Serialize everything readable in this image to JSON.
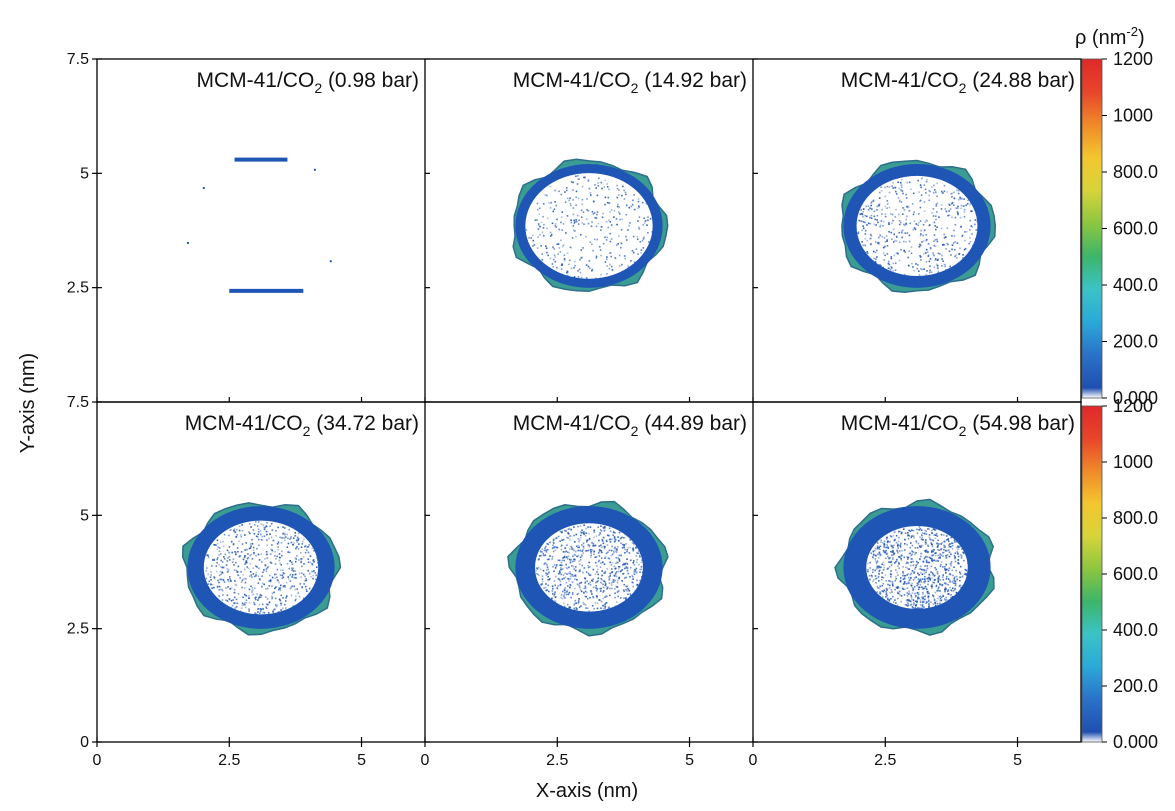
{
  "chart_data": {
    "type": "heatmap",
    "xlabel": "X-axis (nm)",
    "ylabel": "Y-axis (nm)",
    "x_ticks": [
      "0",
      "2.5",
      "5"
    ],
    "y_ticks_top": [
      "7.5",
      "5",
      "2.5"
    ],
    "y_ticks_bottom": [
      "7.5",
      "5",
      "2.5",
      "0"
    ],
    "xlim": [
      0,
      6.2
    ],
    "ylim": [
      0,
      7.5
    ],
    "colorbar": {
      "label": "ρ (nm",
      "label_sup": "-2",
      "label_end": ")",
      "ticks": [
        "1200",
        "1000",
        "800.0",
        "600.0",
        "400.0",
        "200.0",
        "0.000"
      ],
      "range": [
        0,
        1200
      ],
      "colors": [
        "#ffffff",
        "#1f4fb0",
        "#2a72c8",
        "#2aa9d8",
        "#3bc3c6",
        "#3cb56a",
        "#8cc63f",
        "#d6d43a",
        "#f3c62e",
        "#f08a2a",
        "#e8452a",
        "#e0282a"
      ]
    },
    "panels": [
      {
        "title_prefix": "MCM-41/CO",
        "title_sub": "2",
        "title_suffix": " (0.98 bar)",
        "pressure_bar": 0.98,
        "fill": 0.0
      },
      {
        "title_prefix": "MCM-41/CO",
        "title_sub": "2",
        "title_suffix": " (14.92 bar)",
        "pressure_bar": 14.92,
        "fill": 0.25
      },
      {
        "title_prefix": "MCM-41/CO",
        "title_sub": "2",
        "title_suffix": " (24.88 bar)",
        "pressure_bar": 24.88,
        "fill": 0.4
      },
      {
        "title_prefix": "MCM-41/CO",
        "title_sub": "2",
        "title_suffix": " (34.72 bar)",
        "pressure_bar": 34.72,
        "fill": 0.55
      },
      {
        "title_prefix": "MCM-41/CO",
        "title_sub": "2",
        "title_suffix": " (44.89 bar)",
        "pressure_bar": 44.89,
        "fill": 0.7
      },
      {
        "title_prefix": "MCM-41/CO",
        "title_sub": "2",
        "title_suffix": " (54.98 bar)",
        "pressure_bar": 54.98,
        "fill": 0.85
      }
    ]
  }
}
